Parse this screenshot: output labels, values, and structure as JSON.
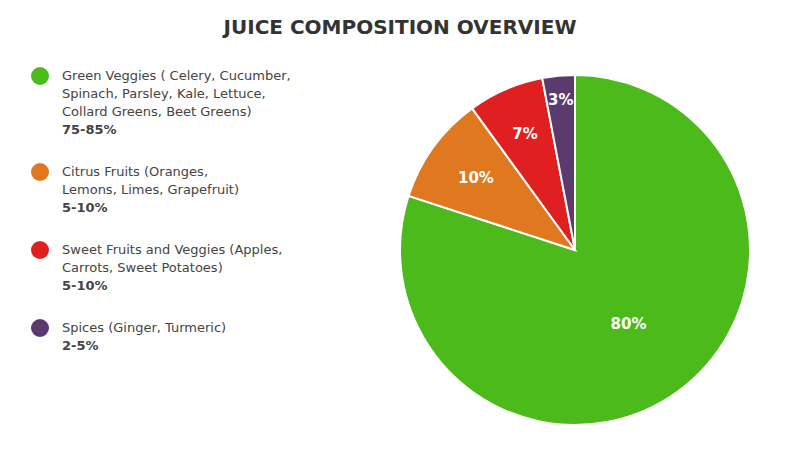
{
  "chart_data": {
    "type": "pie",
    "title": "JUICE COMPOSITION OVERVIEW",
    "values": [
      80,
      10,
      7,
      3
    ],
    "value_labels": [
      "80%",
      "10%",
      "7%",
      "3%"
    ],
    "colors": [
      "#4cba1a",
      "#e07820",
      "#e02020",
      "#5b3a6e"
    ],
    "data_labels": true,
    "legend_items": [
      {
        "lines": [
          "Green Veggies ( Celery, Cucumber,",
          "Spinach, Parsley, Kale, Lettuce,",
          "Collard Greens, Beet Greens)"
        ],
        "share": "75-85%"
      },
      {
        "lines": [
          "Citrus Fruits (Oranges,",
          "Lemons, Limes, Grapefruit)"
        ],
        "share": "5-10%"
      },
      {
        "lines": [
          "Sweet Fruits and Veggies (Apples,",
          "Carrots, Sweet Potatoes)"
        ],
        "share": "5-10%"
      },
      {
        "lines": [
          "Spices (Ginger, Turmeric)"
        ],
        "share": "2-5%"
      }
    ]
  }
}
